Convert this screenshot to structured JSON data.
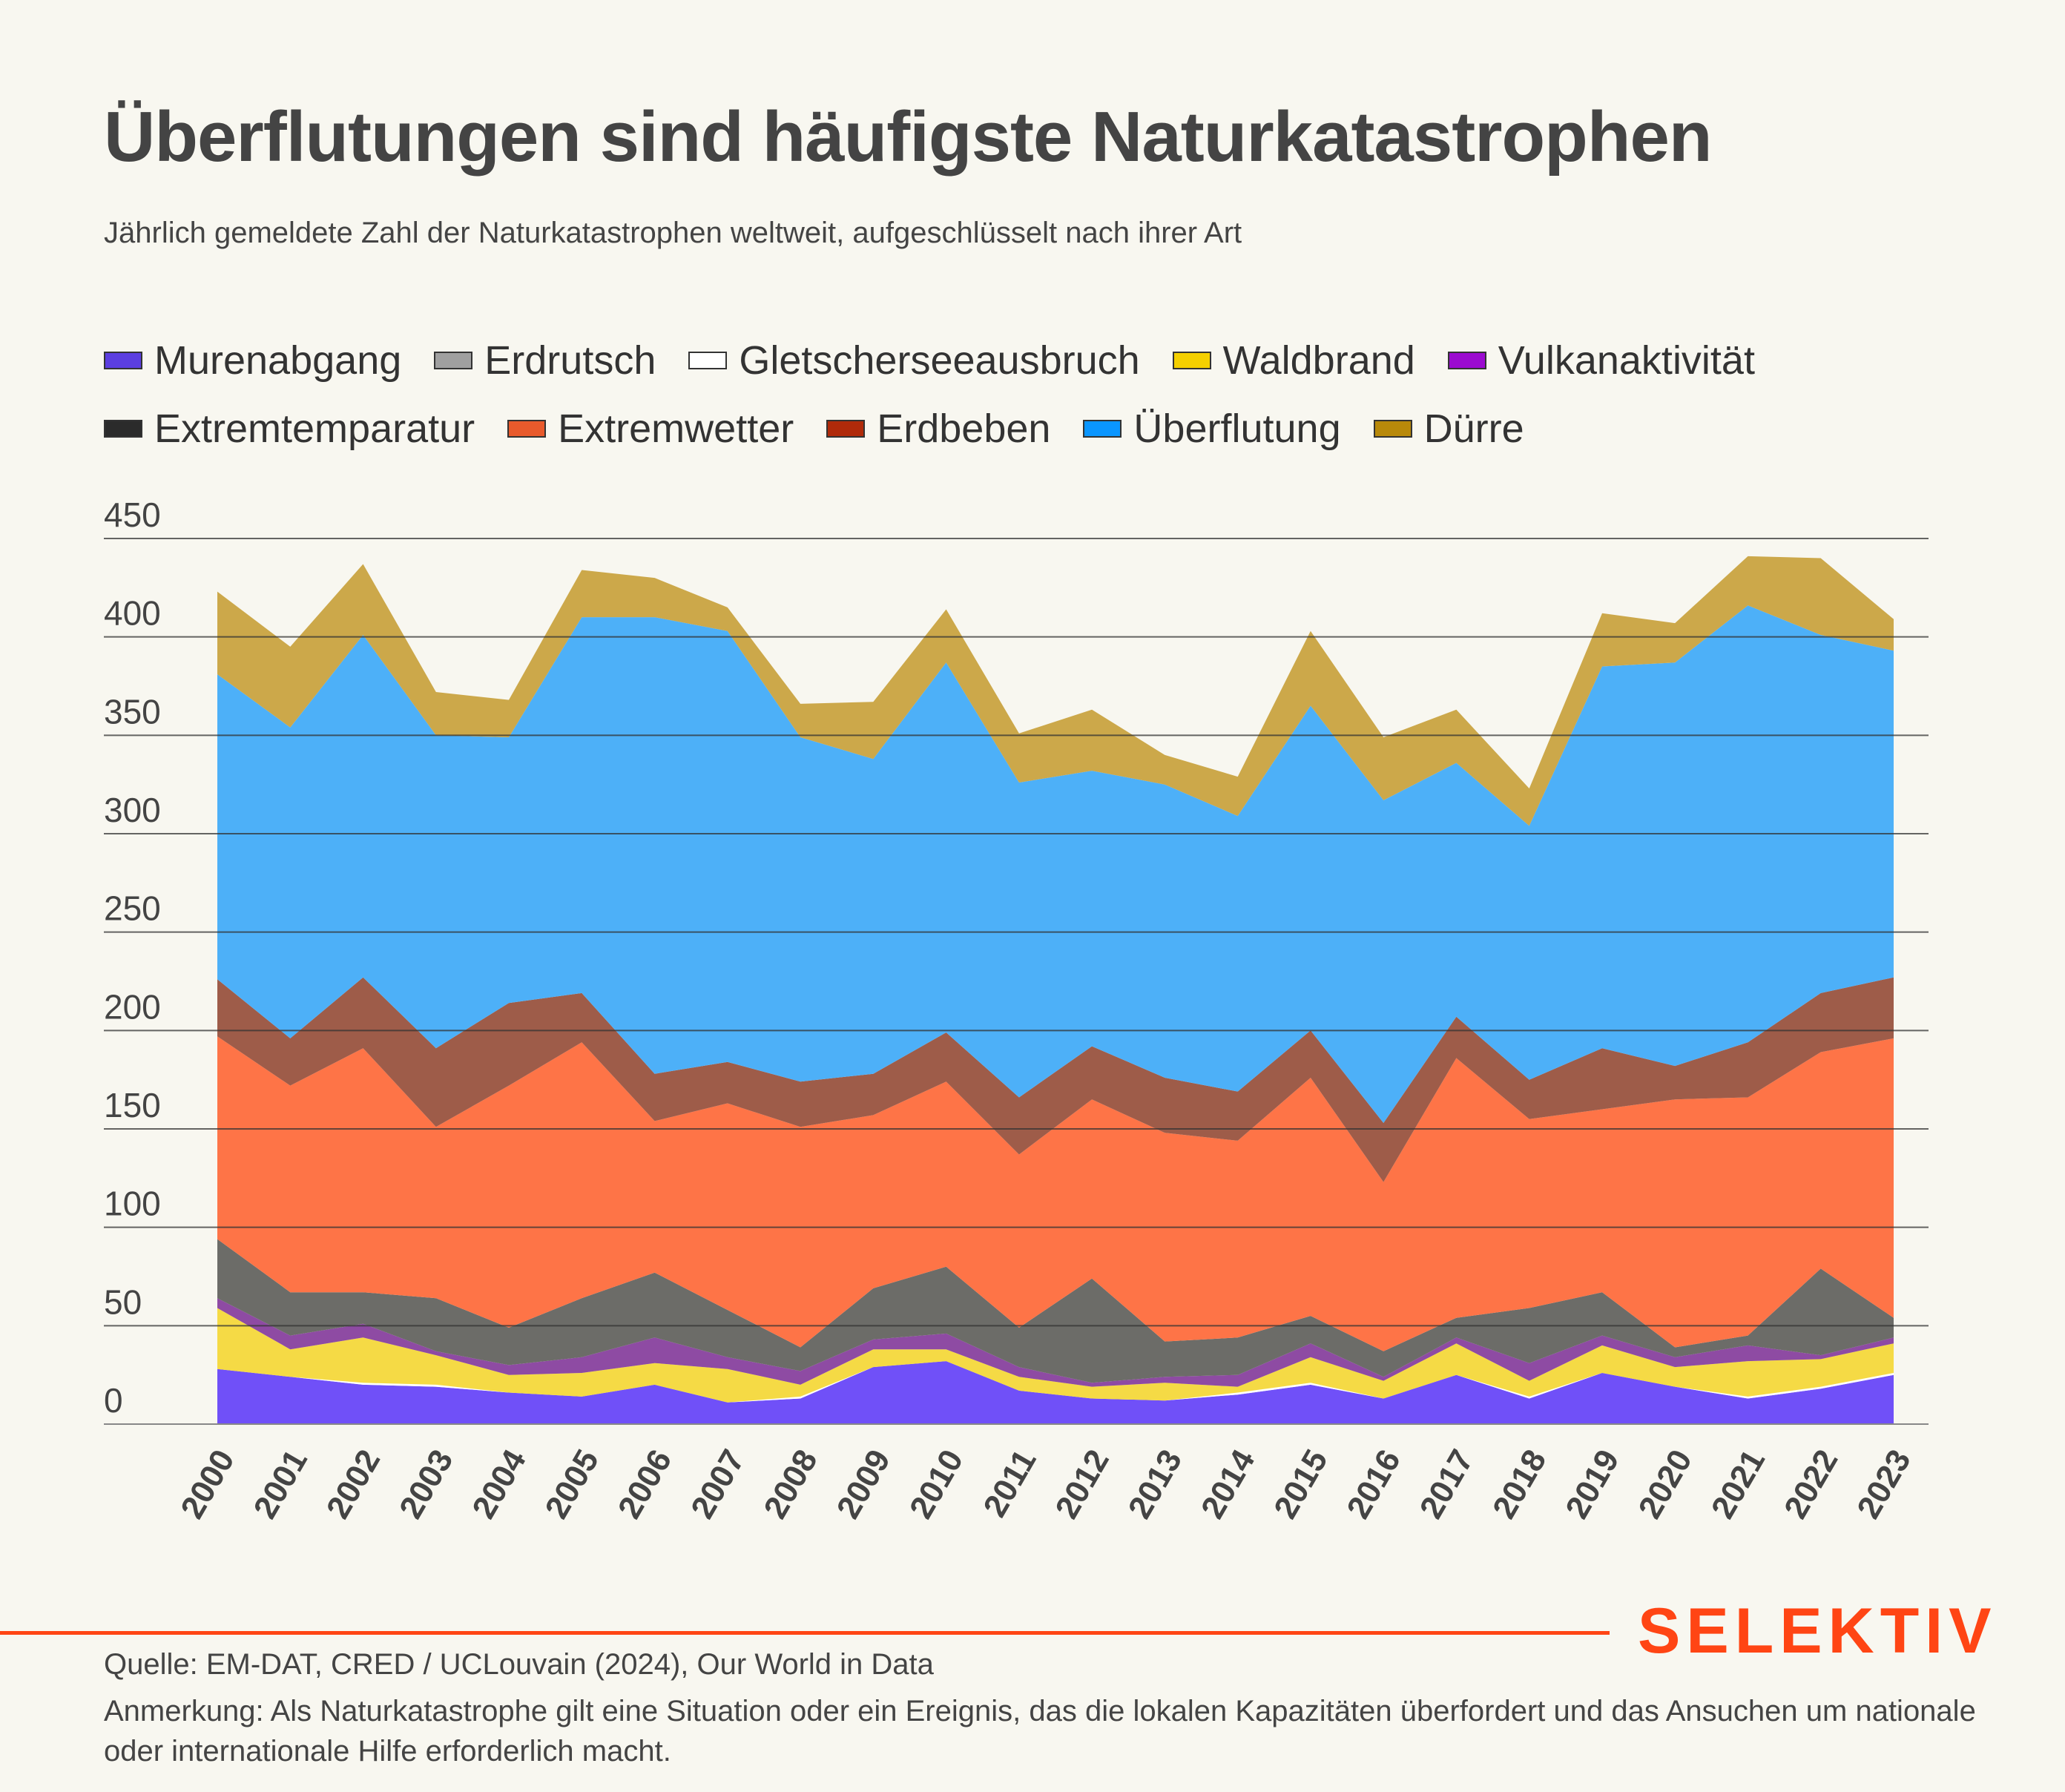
{
  "header": {
    "title": "Überflutungen sind häufigste Naturkatastrophen",
    "subtitle": "Jährlich gemeldete Zahl der Naturkatastrophen weltweit, aufgeschlüsselt nach ihrer Art"
  },
  "legend": {
    "row1": [
      {
        "label": "Murenabgang",
        "color": "#5b3ee0"
      },
      {
        "label": "Erdrutsch",
        "color": "#a0a0a0"
      },
      {
        "label": "Gletscherseeausbruch",
        "color": "#ffffff"
      },
      {
        "label": "Waldbrand",
        "color": "#f5d000"
      },
      {
        "label": "Vulkanaktivität",
        "color": "#9b0bd0"
      }
    ],
    "row2": [
      {
        "label": "Extremtemparatur",
        "color": "#2b2b2b"
      },
      {
        "label": "Extremwetter",
        "color": "#e85a2c"
      },
      {
        "label": "Erdbeben",
        "color": "#b02a0a"
      },
      {
        "label": "Überflutung",
        "color": "#0a96ff"
      },
      {
        "label": "Dürre",
        "color": "#b8890a"
      }
    ]
  },
  "chart_data": {
    "type": "area",
    "stacked": true,
    "title": "Überflutungen sind häufigste Naturkatastrophen",
    "subtitle": "Jährlich gemeldete Zahl der Naturkatastrophen weltweit, aufgeschlüsselt nach ihrer Art",
    "xlabel": "",
    "ylabel": "",
    "ylim": [
      0,
      450
    ],
    "yticks": [
      0,
      50,
      100,
      150,
      200,
      250,
      300,
      350,
      400,
      450
    ],
    "grid": true,
    "legend_position": "top-left",
    "x": [
      "2000",
      "2001",
      "2002",
      "2003",
      "2004",
      "2005",
      "2006",
      "2007",
      "2008",
      "2009",
      "2010",
      "2011",
      "2012",
      "2013",
      "2014",
      "2015",
      "2016",
      "2017",
      "2018",
      "2019",
      "2020",
      "2021",
      "2022",
      "2023"
    ],
    "series": [
      {
        "name": "Murenabgang",
        "color": "#7050f8",
        "values": [
          28,
          24,
          20,
          19,
          16,
          14,
          20,
          11,
          13,
          29,
          32,
          17,
          13,
          12,
          15,
          20,
          13,
          25,
          13,
          26,
          19,
          13,
          18,
          25
        ]
      },
      {
        "name": "Gletscherseeausbruch",
        "color": "#ffffff",
        "values": [
          0,
          0,
          1,
          1,
          0,
          0,
          0,
          0,
          1,
          0,
          0,
          0,
          0,
          0,
          1,
          1,
          0,
          0,
          1,
          0,
          0,
          1,
          1,
          1
        ]
      },
      {
        "name": "Waldbrand",
        "color": "#f5da45",
        "values": [
          31,
          14,
          23,
          15,
          9,
          12,
          11,
          17,
          6,
          9,
          6,
          7,
          6,
          9,
          3,
          13,
          9,
          16,
          8,
          14,
          10,
          18,
          14,
          15
        ]
      },
      {
        "name": "Vulkanaktivität",
        "color": "#8e4ba3",
        "values": [
          5,
          7,
          7,
          2,
          5,
          8,
          13,
          6,
          7,
          5,
          8,
          5,
          2,
          3,
          6,
          7,
          2,
          3,
          9,
          5,
          5,
          8,
          2,
          3
        ]
      },
      {
        "name": "Erdrutsch",
        "color": "#6c6c68",
        "values": [
          30,
          22,
          16,
          27,
          19,
          30,
          33,
          24,
          12,
          26,
          34,
          20,
          53,
          18,
          19,
          14,
          13,
          10,
          28,
          22,
          5,
          5,
          44,
          10
        ]
      },
      {
        "name": "Extremtemparatur",
        "color": "#2b2b2b",
        "values": [
          0,
          0,
          0,
          0,
          0,
          0,
          0,
          0,
          0,
          0,
          0,
          0,
          0,
          0,
          0,
          0,
          0,
          0,
          0,
          0,
          0,
          0,
          0,
          0
        ]
      },
      {
        "name": "Extremwetter",
        "color": "#fe7447",
        "values": [
          103,
          105,
          124,
          87,
          123,
          130,
          77,
          105,
          112,
          88,
          94,
          88,
          91,
          106,
          100,
          121,
          86,
          132,
          96,
          93,
          126,
          121,
          110,
          142
        ]
      },
      {
        "name": "Erdbeben",
        "color": "#9e5c49",
        "values": [
          29,
          24,
          36,
          40,
          42,
          25,
          24,
          21,
          23,
          21,
          25,
          29,
          27,
          28,
          25,
          24,
          30,
          21,
          20,
          31,
          17,
          28,
          30,
          31
        ]
      },
      {
        "name": "Überflutung",
        "color": "#4db0f8",
        "values": [
          155,
          158,
          174,
          159,
          135,
          191,
          232,
          219,
          175,
          160,
          188,
          160,
          140,
          149,
          140,
          165,
          164,
          129,
          129,
          194,
          205,
          222,
          182,
          166
        ]
      },
      {
        "name": "Dürre",
        "color": "#cca84a",
        "values": [
          42,
          41,
          36,
          22,
          19,
          24,
          20,
          12,
          17,
          29,
          27,
          25,
          31,
          15,
          20,
          38,
          32,
          27,
          19,
          27,
          20,
          25,
          39,
          16
        ]
      }
    ]
  },
  "footer": {
    "brand": "SELEKTIV",
    "source": "Quelle: EM-DAT, CRED / UCLouvain (2024), Our World in Data",
    "note": "Anmerkung: Als Naturkatastrophe gilt eine Situation oder ein Ereignis, das die lokalen Kapazitäten überfordert und das Ansuchen um nationale oder internationale Hilfe erforderlich macht."
  }
}
